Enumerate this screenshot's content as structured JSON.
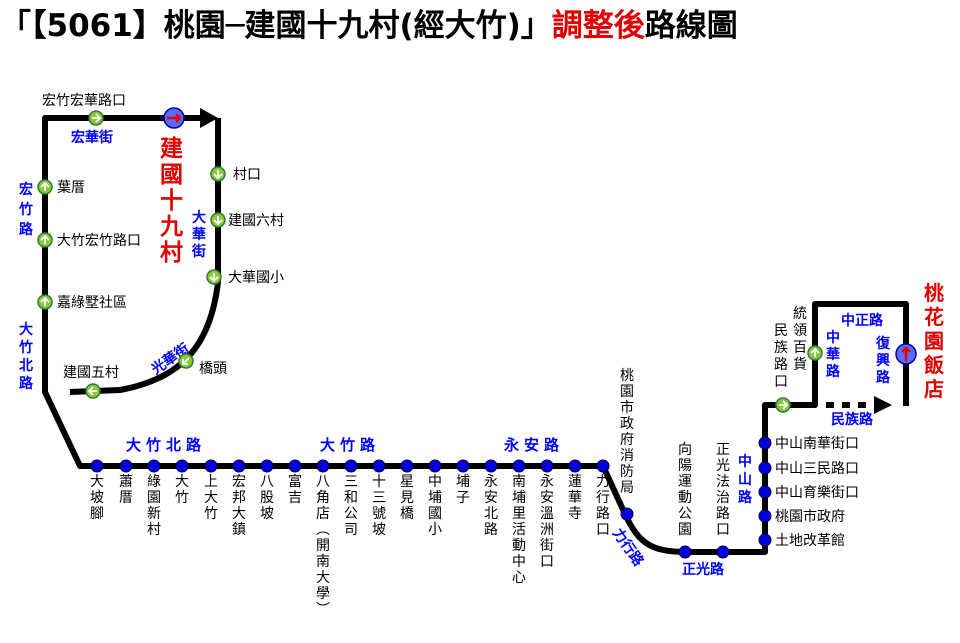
{
  "title": {
    "open_quote": "「",
    "route": "【5061】桃園─建國十九村(經大竹)",
    "close_quote": "」",
    "adjusted": "調整後",
    "suffix": "路線圖"
  },
  "terminals": {
    "west": "建國十九村",
    "east": "桃花園飯店"
  },
  "loop_stops": [
    {
      "id": "hongzhu-honghua",
      "label": "宏竹宏華路口"
    },
    {
      "id": "yecuo",
      "label": "葉厝"
    },
    {
      "id": "dazhu-hongzhu",
      "label": "大竹宏竹路口"
    },
    {
      "id": "jialu",
      "label": "嘉綠墅社區"
    },
    {
      "id": "cunkou",
      "label": "村口"
    },
    {
      "id": "jianguo6",
      "label": "建國六村"
    },
    {
      "id": "dahua-school",
      "label": "大華國小"
    },
    {
      "id": "qiaotou",
      "label": "橋頭"
    },
    {
      "id": "jianguo5",
      "label": "建國五村"
    }
  ],
  "main_stops": [
    "大坡腳",
    "蕭厝",
    "綠園新村",
    "大竹",
    "上大竹",
    "宏邦大鎮",
    "八股坡",
    "富吉",
    "八角店(開南大學)",
    "三和公司",
    "十三號坡",
    "星見橋",
    "中埔國小",
    "埔子",
    "永安北路",
    "南埔里活動中心",
    "永安溫洲街口",
    "蓮華寺",
    "力行路口",
    "桃園市政府消防局",
    "向陽運動公園",
    "正光法治路口"
  ],
  "east_stops": [
    "中山南華街口",
    "中山三民路口",
    "中山育樂街口",
    "桃園市政府",
    "土地改革館"
  ],
  "upper_stop": "統領百貨民族路口",
  "roads": {
    "honghua": "宏華街",
    "hongzhu": "宏竹路",
    "dazhubei_v": "大竹北路",
    "dahua": "大華街",
    "guanghua": "光華街",
    "dazhubei_h": "大竹北路",
    "dazhu": "大竹路",
    "yongan": "永安路",
    "lixing": "力行路",
    "zhengguang": "正光路",
    "zhongshan": "中山路",
    "zhonghua": "中華路",
    "zhongzheng": "中正路",
    "fuxing": "復興路",
    "minzu": "民族路"
  },
  "colors": {
    "title_accent": "#e00000",
    "road_label": "#0000ff",
    "terminal_label": "#e00000",
    "stop_main": "#0000dd",
    "stop_loop": "#8cc63f",
    "route_line": "#000000"
  },
  "icons": {
    "loop_stop": "green-arrow-circle-icon",
    "terminal": "red-arrow-circle-icon",
    "main_stop": "blue-dot-icon"
  }
}
